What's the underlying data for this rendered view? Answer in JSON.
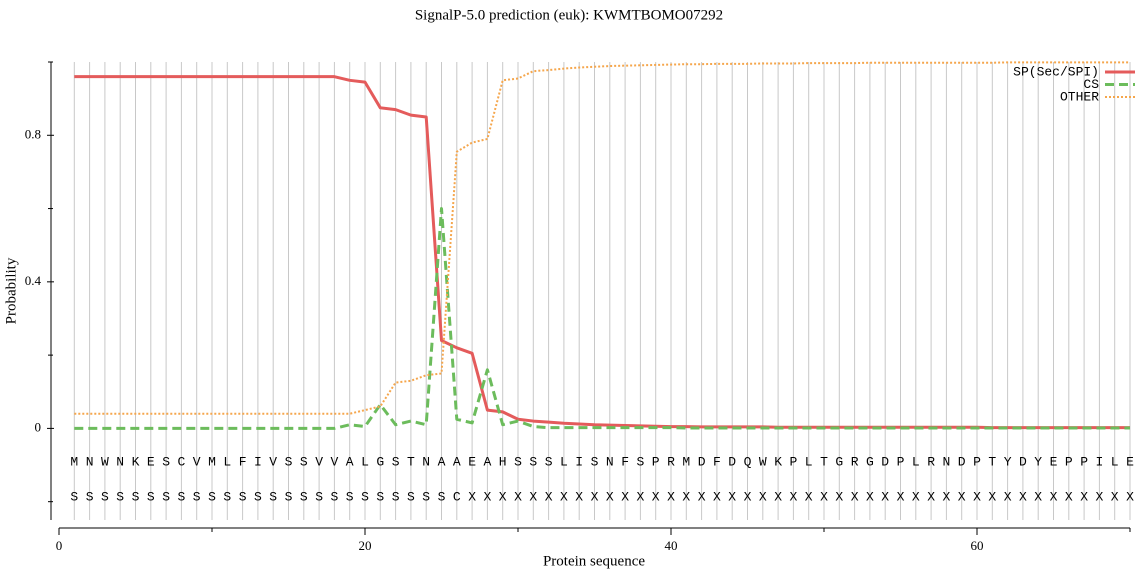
{
  "chart_data": {
    "type": "line",
    "title": "SignalP-5.0 prediction (euk):  KWMTBOMO07292",
    "x_label": "Protein sequence",
    "y_label": "Probability",
    "x": [
      1,
      2,
      3,
      4,
      5,
      6,
      7,
      8,
      9,
      10,
      11,
      12,
      13,
      14,
      15,
      16,
      17,
      18,
      19,
      20,
      21,
      22,
      23,
      24,
      25,
      26,
      27,
      28,
      29,
      30,
      31,
      32,
      33,
      34,
      35,
      36,
      37,
      38,
      39,
      40,
      41,
      42,
      43,
      44,
      45,
      46,
      47,
      48,
      49,
      50,
      51,
      52,
      53,
      54,
      55,
      56,
      57,
      58,
      59,
      60,
      61,
      62,
      63,
      64,
      65,
      66,
      67,
      68,
      69,
      70
    ],
    "sequence": [
      "M",
      "N",
      "W",
      "N",
      "K",
      "E",
      "S",
      "C",
      "V",
      "M",
      "L",
      "F",
      "I",
      "V",
      "S",
      "S",
      "V",
      "V",
      "A",
      "L",
      "G",
      "S",
      "T",
      "N",
      "A",
      "A",
      "E",
      "A",
      "H",
      "S",
      "S",
      "S",
      "L",
      "I",
      "S",
      "N",
      "F",
      "S",
      "P",
      "R",
      "M",
      "D",
      "F",
      "D",
      "Q",
      "W",
      "K",
      "P",
      "L",
      "T",
      "G",
      "R",
      "G",
      "D",
      "P",
      "L",
      "R",
      "N",
      "D",
      "P",
      "T",
      "Y",
      "D",
      "Y",
      "E",
      "P",
      "P",
      "I",
      "L",
      "E"
    ],
    "annotation": [
      "S",
      "S",
      "S",
      "S",
      "S",
      "S",
      "S",
      "S",
      "S",
      "S",
      "S",
      "S",
      "S",
      "S",
      "S",
      "S",
      "S",
      "S",
      "S",
      "S",
      "S",
      "S",
      "S",
      "S",
      "S",
      "C",
      "X",
      "X",
      "X",
      "X",
      "X",
      "X",
      "X",
      "X",
      "X",
      "X",
      "X",
      "X",
      "X",
      "X",
      "X",
      "X",
      "X",
      "X",
      "X",
      "X",
      "X",
      "X",
      "X",
      "X",
      "X",
      "X",
      "X",
      "X",
      "X",
      "X",
      "X",
      "X",
      "X",
      "X",
      "X",
      "X",
      "X",
      "X",
      "X",
      "X",
      "X",
      "X",
      "X",
      "X"
    ],
    "series": [
      {
        "name": "SP(Sec/SPI)",
        "color": "#e45b5b",
        "style": "solid",
        "values": [
          0.96,
          0.96,
          0.96,
          0.96,
          0.96,
          0.96,
          0.96,
          0.96,
          0.96,
          0.96,
          0.96,
          0.96,
          0.96,
          0.96,
          0.96,
          0.96,
          0.96,
          0.96,
          0.95,
          0.945,
          0.875,
          0.87,
          0.855,
          0.85,
          0.24,
          0.22,
          0.205,
          0.05,
          0.045,
          0.025,
          0.02,
          0.017,
          0.014,
          0.012,
          0.01,
          0.009,
          0.008,
          0.007,
          0.006,
          0.005,
          0.005,
          0.004,
          0.004,
          0.004,
          0.004,
          0.004,
          0.003,
          0.003,
          0.003,
          0.003,
          0.003,
          0.003,
          0.003,
          0.003,
          0.003,
          0.003,
          0.003,
          0.003,
          0.003,
          0.003,
          0.002,
          0.002,
          0.002,
          0.002,
          0.002,
          0.002,
          0.002,
          0.002,
          0.002,
          0.002
        ]
      },
      {
        "name": "CS",
        "color": "#6cbc5c",
        "style": "dashed",
        "values": [
          0,
          0,
          0,
          0,
          0,
          0,
          0,
          0,
          0,
          0,
          0,
          0,
          0,
          0,
          0,
          0,
          0,
          0,
          0.01,
          0.005,
          0.065,
          0.01,
          0.02,
          0.01,
          0.6,
          0.025,
          0.015,
          0.16,
          0.01,
          0.02,
          0.005,
          0.002,
          0.002,
          0.002,
          0.002,
          0.002,
          0.002,
          0.002,
          0.002,
          0.002,
          0.001,
          0.001,
          0.001,
          0.001,
          0.001,
          0.001,
          0.001,
          0.001,
          0.001,
          0.001,
          0.001,
          0.001,
          0.001,
          0.001,
          0.001,
          0.001,
          0.001,
          0.001,
          0.001,
          0.001,
          0.001,
          0.001,
          0.001,
          0.001,
          0.001,
          0.001,
          0.001,
          0.001,
          0.001,
          0.001
        ]
      },
      {
        "name": "OTHER",
        "color": "#f5a64c",
        "style": "dotted",
        "values": [
          0.04,
          0.04,
          0.04,
          0.04,
          0.04,
          0.04,
          0.04,
          0.04,
          0.04,
          0.04,
          0.04,
          0.04,
          0.04,
          0.04,
          0.04,
          0.04,
          0.04,
          0.04,
          0.04,
          0.05,
          0.06,
          0.125,
          0.13,
          0.145,
          0.15,
          0.755,
          0.78,
          0.79,
          0.95,
          0.955,
          0.975,
          0.978,
          0.982,
          0.985,
          0.987,
          0.989,
          0.99,
          0.991,
          0.992,
          0.993,
          0.994,
          0.994,
          0.995,
          0.995,
          0.995,
          0.996,
          0.996,
          0.996,
          0.997,
          0.997,
          0.997,
          0.997,
          0.998,
          0.998,
          0.998,
          0.998,
          0.998,
          0.998,
          0.998,
          0.998,
          0.998,
          0.999,
          0.999,
          0.999,
          0.999,
          0.999,
          0.999,
          0.999,
          0.999,
          0.999
        ]
      }
    ],
    "xlim": [
      0,
      70
    ],
    "xticks": [
      0,
      20,
      40,
      60
    ],
    "xminor_ticks": [
      10,
      30,
      50,
      70
    ],
    "ylim": [
      -0.25,
      1.0
    ],
    "yticks": [
      0,
      0.4,
      0.8
    ],
    "yminor_ticks": [
      -0.2,
      0.2,
      0.6,
      1.0
    ],
    "grid": true,
    "legend": "top-right"
  }
}
